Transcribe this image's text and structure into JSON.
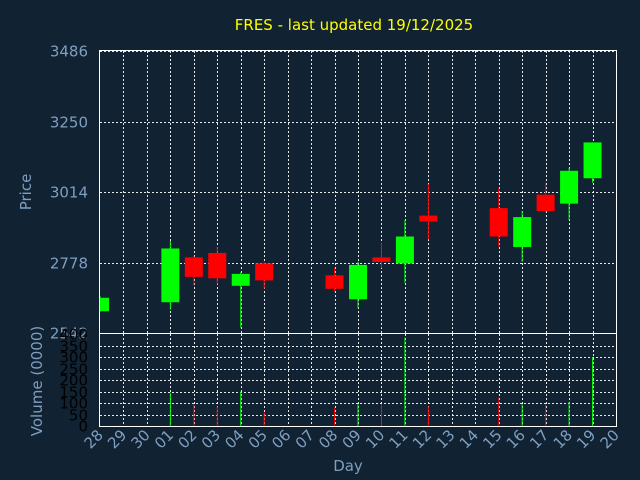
{
  "chart_data": {
    "type": "candlestick",
    "title": "FRES - last updated 19/12/2025",
    "colors": {
      "background": "#112233",
      "title": "#ffff00",
      "axis_text": "#7f9fbf",
      "up": "#00ff00",
      "down": "#ff0000",
      "grid": "#ffffff"
    },
    "price_axis": {
      "label": "Price",
      "ticks": [
        2542,
        2778,
        3014,
        3250,
        3486
      ],
      "ylim": [
        2542,
        3486
      ]
    },
    "volume_axis": {
      "label": "Volume (0000)",
      "ticks": [
        0,
        50,
        100,
        150,
        200,
        250,
        300,
        350,
        400
      ],
      "ylim": [
        0,
        400
      ]
    },
    "x_axis": {
      "label": "Day",
      "ticks": [
        "28",
        "29",
        "30",
        "01",
        "02",
        "03",
        "04",
        "05",
        "06",
        "07",
        "08",
        "09",
        "10",
        "11",
        "12",
        "13",
        "14",
        "15",
        "16",
        "17",
        "18",
        "19",
        "20"
      ]
    },
    "candles": [
      {
        "day": "28",
        "open": 2615,
        "close": 2660,
        "high": 2665,
        "low": 2612,
        "volume": 0
      },
      {
        "day": "01",
        "open": 2645,
        "close": 2825,
        "high": 2850,
        "low": 2620,
        "volume": 145
      },
      {
        "day": "02",
        "open": 2795,
        "close": 2730,
        "high": 2800,
        "low": 2700,
        "volume": 95
      },
      {
        "day": "03",
        "open": 2810,
        "close": 2725,
        "high": 2830,
        "low": 2705,
        "volume": 85
      },
      {
        "day": "04",
        "open": 2700,
        "close": 2740,
        "high": 2745,
        "low": 2560,
        "volume": 150
      },
      {
        "day": "05",
        "open": 2775,
        "close": 2718,
        "high": 2780,
        "low": 2690,
        "volume": 60
      },
      {
        "day": "08",
        "open": 2735,
        "close": 2690,
        "high": 2760,
        "low": 2680,
        "volume": 80
      },
      {
        "day": "09",
        "open": 2655,
        "close": 2770,
        "high": 2780,
        "low": 2625,
        "volume": 95
      },
      {
        "day": "10",
        "open": 2795,
        "close": 2780,
        "high": 2845,
        "low": 2760,
        "volume": 95
      },
      {
        "day": "11",
        "open": 2775,
        "close": 2865,
        "high": 2920,
        "low": 2710,
        "volume": 385
      },
      {
        "day": "12",
        "open": 2935,
        "close": 2915,
        "high": 3040,
        "low": 2855,
        "volume": 85
      },
      {
        "day": "15",
        "open": 2960,
        "close": 2865,
        "high": 3030,
        "low": 2830,
        "volume": 125
      },
      {
        "day": "16",
        "open": 2830,
        "close": 2930,
        "high": 2950,
        "low": 2780,
        "volume": 95
      },
      {
        "day": "17",
        "open": 3005,
        "close": 2950,
        "high": 3045,
        "low": 2945,
        "volume": 95
      },
      {
        "day": "18",
        "open": 2975,
        "close": 3085,
        "high": 3095,
        "low": 2920,
        "volume": 105
      },
      {
        "day": "19",
        "open": 3060,
        "close": 3180,
        "high": 3180,
        "low": 3045,
        "volume": 300
      }
    ]
  }
}
